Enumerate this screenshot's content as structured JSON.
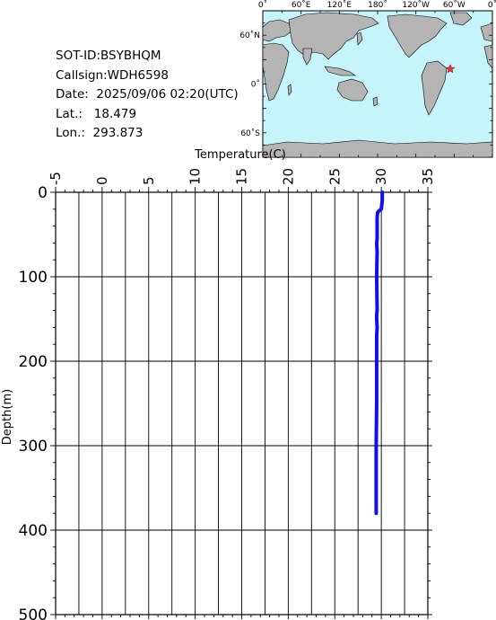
{
  "info": {
    "sot_id": "SOT-ID:BSYBHQM",
    "callsign": "Callsign:WDH6598",
    "date": "Date:  2025/09/06 02:20(UTC)",
    "lat": "Lat.:   18.479",
    "lon": "Lon.:  293.873"
  },
  "map": {
    "top_labels": [
      "0˚",
      "60˚E",
      "120˚E",
      "180˚",
      "120˚W",
      "60˚W",
      "0˚"
    ],
    "left_labels": [
      "60˚N",
      "0˚",
      "60˚S"
    ],
    "ocean_color": "#c6f4fb",
    "land_color": "#b4b4b4",
    "marker_color": "#ff2a2a",
    "marker": {
      "lon": 293.873,
      "lat": 18.479
    }
  },
  "chart_data": {
    "type": "line",
    "xlabel": "Temperature(C)",
    "ylabel": "Depth(m)",
    "xlim": [
      -5,
      35
    ],
    "ylim": [
      0,
      500
    ],
    "y_inverted": true,
    "x_axis_position": "top",
    "grid": true,
    "xticks": [
      -5,
      0,
      5,
      10,
      15,
      20,
      25,
      30,
      35
    ],
    "yticks": [
      0,
      100,
      200,
      300,
      400,
      500
    ],
    "line_color": "#1010e8",
    "series": [
      {
        "temperature": [
          30.1,
          30.1,
          30.05,
          30.0,
          29.75,
          29.6,
          29.55,
          29.55,
          29.5,
          29.55,
          29.5,
          29.55,
          29.5,
          29.5,
          29.55,
          29.5,
          29.5,
          29.5,
          29.45,
          29.45,
          29.45
        ],
        "depth": [
          0,
          10,
          15,
          20,
          22,
          24,
          30,
          55,
          60,
          70,
          100,
          140,
          145,
          150,
          160,
          170,
          200,
          250,
          300,
          350,
          380
        ]
      }
    ]
  }
}
